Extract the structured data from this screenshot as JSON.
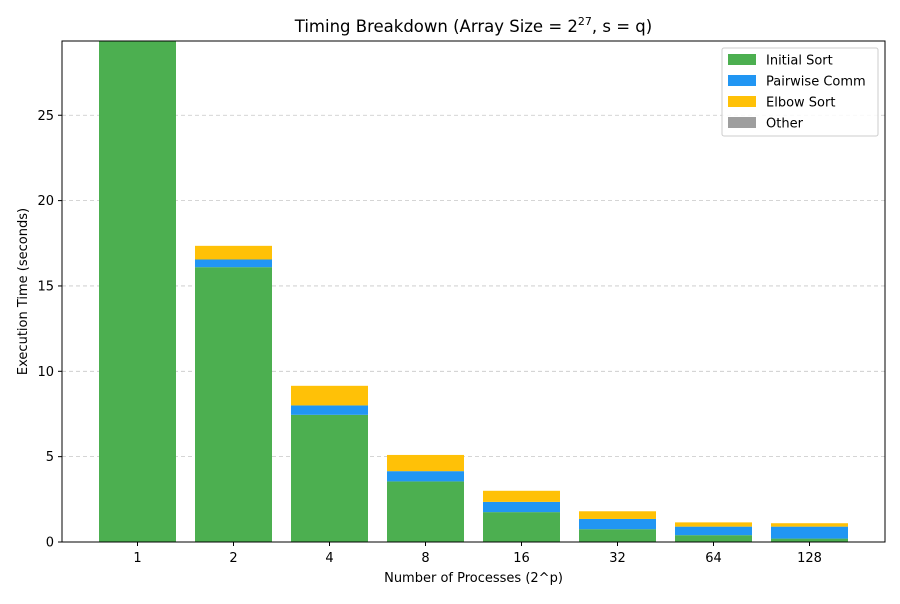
{
  "chart_data": {
    "type": "bar",
    "stacked": true,
    "title": {
      "prefix": "Timing Breakdown (Array Size = 2",
      "superscript": "27",
      "suffix": ", s = q)"
    },
    "xlabel": "Number of Processes (2^p)",
    "ylabel": "Execution Time (seconds)",
    "categories": [
      "1",
      "2",
      "4",
      "8",
      "16",
      "32",
      "64",
      "128"
    ],
    "ylim": [
      0,
      29.35
    ],
    "yticks": [
      "0",
      "5",
      "10",
      "15",
      "20",
      "25"
    ],
    "grid": "y-dashed",
    "legend_position": "top-right",
    "series": [
      {
        "name": "Initial Sort",
        "color": "#4caf50",
        "values": [
          29.35,
          16.1,
          7.45,
          3.55,
          1.75,
          0.75,
          0.4,
          0.2
        ]
      },
      {
        "name": "Pairwise Comm",
        "color": "#2196f3",
        "values": [
          0,
          0.45,
          0.55,
          0.6,
          0.6,
          0.6,
          0.5,
          0.7
        ]
      },
      {
        "name": "Elbow Sort",
        "color": "#ffc107",
        "values": [
          0,
          0.8,
          1.15,
          0.95,
          0.65,
          0.45,
          0.25,
          0.2
        ]
      },
      {
        "name": "Other",
        "color": "#9e9e9e",
        "values": [
          0,
          0,
          0,
          0,
          0,
          0,
          0,
          0
        ]
      }
    ]
  }
}
